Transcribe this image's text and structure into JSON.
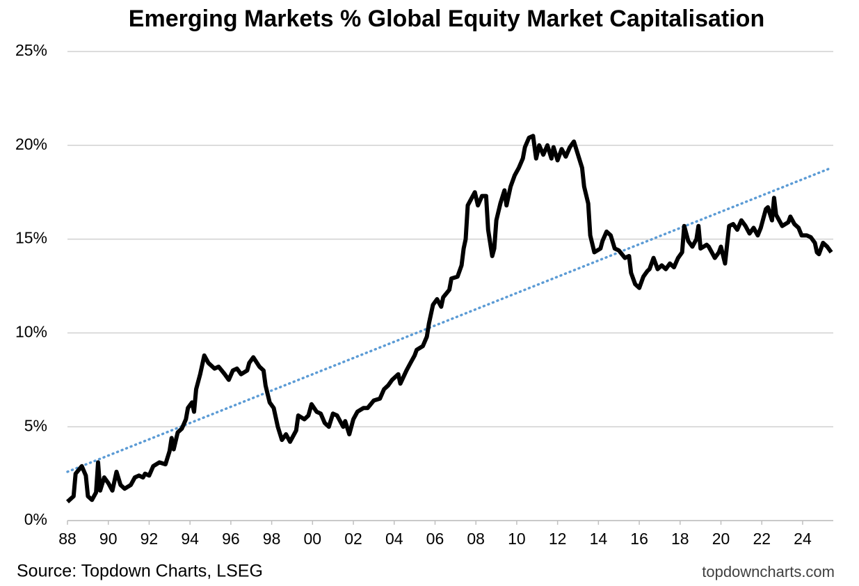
{
  "chart_data": {
    "type": "line",
    "title": "Emerging Markets % Global Equity Market Capitalisation",
    "source": "Source: Topdown Charts, LSEG",
    "credit": "topdowncharts.com",
    "xlim": [
      1988,
      2025.5
    ],
    "ylim": [
      0,
      25
    ],
    "grid": true,
    "xticks": [
      {
        "value": 1988,
        "label": "88"
      },
      {
        "value": 1990,
        "label": "90"
      },
      {
        "value": 1992,
        "label": "92"
      },
      {
        "value": 1994,
        "label": "94"
      },
      {
        "value": 1996,
        "label": "96"
      },
      {
        "value": 1998,
        "label": "98"
      },
      {
        "value": 2000,
        "label": "00"
      },
      {
        "value": 2002,
        "label": "02"
      },
      {
        "value": 2004,
        "label": "04"
      },
      {
        "value": 2006,
        "label": "06"
      },
      {
        "value": 2008,
        "label": "08"
      },
      {
        "value": 2010,
        "label": "10"
      },
      {
        "value": 2012,
        "label": "12"
      },
      {
        "value": 2014,
        "label": "14"
      },
      {
        "value": 2016,
        "label": "16"
      },
      {
        "value": 2018,
        "label": "18"
      },
      {
        "value": 2020,
        "label": "20"
      },
      {
        "value": 2022,
        "label": "22"
      },
      {
        "value": 2024,
        "label": "24"
      }
    ],
    "yticks": [
      {
        "value": 0,
        "label": "0%"
      },
      {
        "value": 5,
        "label": "5%"
      },
      {
        "value": 10,
        "label": "10%"
      },
      {
        "value": 15,
        "label": "15%"
      },
      {
        "value": 20,
        "label": "20%"
      },
      {
        "value": 25,
        "label": "25%"
      }
    ],
    "x": [
      1988.0,
      1988.3,
      1988.4,
      1988.7,
      1988.9,
      1989.0,
      1989.2,
      1989.4,
      1989.5,
      1989.6,
      1989.8,
      1990.0,
      1990.2,
      1990.4,
      1990.6,
      1990.8,
      1991.1,
      1991.3,
      1991.5,
      1991.7,
      1991.8,
      1992.0,
      1992.2,
      1992.5,
      1992.8,
      1993.0,
      1993.1,
      1993.2,
      1993.4,
      1993.6,
      1993.8,
      1993.9,
      1994.1,
      1994.2,
      1994.3,
      1994.5,
      1994.7,
      1994.9,
      1995.2,
      1995.4,
      1995.7,
      1995.9,
      1996.1,
      1996.3,
      1996.5,
      1996.8,
      1996.9,
      1997.1,
      1997.4,
      1997.6,
      1997.7,
      1997.9,
      1998.1,
      1998.3,
      1998.5,
      1998.7,
      1998.9,
      1999.2,
      1999.3,
      1999.6,
      1999.8,
      1999.95,
      2000.2,
      2000.4,
      2000.6,
      2000.8,
      2001.0,
      2001.2,
      2001.5,
      2001.6,
      2001.8,
      2002.0,
      2002.2,
      2002.5,
      2002.7,
      2003.0,
      2003.3,
      2003.5,
      2003.7,
      2003.9,
      2004.2,
      2004.3,
      2004.6,
      2004.8,
      2005.0,
      2005.1,
      2005.4,
      2005.6,
      2005.7,
      2005.9,
      2006.1,
      2006.3,
      2006.4,
      2006.7,
      2006.8,
      2007.1,
      2007.3,
      2007.4,
      2007.5,
      2007.6,
      2007.8,
      2007.95,
      2008.1,
      2008.3,
      2008.5,
      2008.6,
      2008.8,
      2008.9,
      2009.0,
      2009.2,
      2009.4,
      2009.5,
      2009.7,
      2009.9,
      2010.1,
      2010.3,
      2010.4,
      2010.6,
      2010.8,
      2010.95,
      2011.1,
      2011.3,
      2011.5,
      2011.7,
      2011.8,
      2012.0,
      2012.2,
      2012.4,
      2012.6,
      2012.8,
      2013.0,
      2013.2,
      2013.3,
      2013.5,
      2013.6,
      2013.8,
      2014.1,
      2014.2,
      2014.4,
      2014.6,
      2014.8,
      2015.0,
      2015.3,
      2015.5,
      2015.6,
      2015.8,
      2016.0,
      2016.2,
      2016.4,
      2016.5,
      2016.7,
      2016.9,
      2017.1,
      2017.3,
      2017.5,
      2017.7,
      2017.9,
      2018.1,
      2018.2,
      2018.4,
      2018.6,
      2018.8,
      2018.9,
      2019.0,
      2019.3,
      2019.4,
      2019.7,
      2019.9,
      2020.0,
      2020.2,
      2020.4,
      2020.6,
      2020.8,
      2021.0,
      2021.2,
      2021.4,
      2021.6,
      2021.8,
      2021.95,
      2022.2,
      2022.3,
      2022.5,
      2022.6,
      2022.7,
      2022.9,
      2023.0,
      2023.3,
      2023.4,
      2023.6,
      2023.8,
      2023.95,
      2024.2,
      2024.4,
      2024.6,
      2024.7,
      2024.8,
      2025.0,
      2025.2,
      2025.4
    ],
    "series": [
      {
        "color": "#000000",
        "values": [
          1.0,
          1.3,
          2.5,
          2.9,
          2.4,
          1.3,
          1.1,
          1.5,
          3.1,
          1.6,
          2.3,
          2.0,
          1.6,
          2.6,
          1.9,
          1.7,
          1.9,
          2.3,
          2.4,
          2.3,
          2.5,
          2.4,
          2.9,
          3.1,
          3.0,
          3.7,
          4.4,
          3.8,
          4.7,
          4.9,
          5.4,
          6.0,
          6.3,
          5.8,
          7.0,
          7.8,
          8.8,
          8.4,
          8.1,
          8.2,
          7.8,
          7.5,
          8.0,
          8.1,
          7.8,
          8.0,
          8.4,
          8.7,
          8.2,
          8.0,
          7.2,
          6.3,
          6.0,
          5.0,
          4.3,
          4.6,
          4.2,
          4.8,
          5.6,
          5.4,
          5.6,
          6.2,
          5.8,
          5.7,
          5.2,
          5.0,
          5.7,
          5.6,
          5.0,
          5.3,
          4.6,
          5.4,
          5.8,
          6.0,
          6.0,
          6.4,
          6.5,
          7.0,
          7.2,
          7.5,
          7.8,
          7.3,
          8.0,
          8.4,
          8.8,
          9.1,
          9.3,
          9.8,
          10.5,
          11.5,
          11.8,
          11.4,
          11.9,
          12.3,
          12.9,
          13.0,
          13.6,
          14.5,
          15.0,
          16.8,
          17.2,
          17.5,
          16.8,
          17.3,
          17.3,
          15.5,
          14.1,
          14.5,
          16.0,
          16.9,
          17.6,
          16.8,
          17.8,
          18.4,
          18.8,
          19.3,
          19.9,
          20.4,
          20.5,
          19.3,
          20.0,
          19.5,
          20.0,
          19.3,
          19.9,
          19.2,
          19.8,
          19.4,
          19.9,
          20.2,
          19.5,
          18.8,
          17.8,
          16.9,
          15.2,
          14.3,
          14.5,
          14.9,
          15.4,
          15.2,
          14.5,
          14.4,
          14.0,
          14.1,
          13.2,
          12.6,
          12.4,
          13.0,
          13.3,
          13.4,
          14.0,
          13.4,
          13.6,
          13.4,
          13.7,
          13.5,
          14.0,
          14.3,
          15.7,
          14.9,
          14.6,
          15.0,
          15.7,
          14.5,
          14.7,
          14.6,
          14.0,
          14.3,
          14.6,
          13.7,
          15.7,
          15.8,
          15.5,
          16.0,
          15.7,
          15.3,
          15.6,
          15.2,
          15.6,
          16.6,
          16.7,
          16.0,
          17.2,
          16.3,
          15.9,
          15.7,
          15.9,
          16.2,
          15.8,
          15.6,
          15.2,
          15.2,
          15.1,
          14.8,
          14.3,
          14.2,
          14.8,
          14.6,
          14.3
        ]
      }
    ],
    "trendline": {
      "color": "#5b9bd5",
      "x": [
        1988,
        2025.4
      ],
      "values": [
        2.6,
        18.8
      ]
    }
  }
}
